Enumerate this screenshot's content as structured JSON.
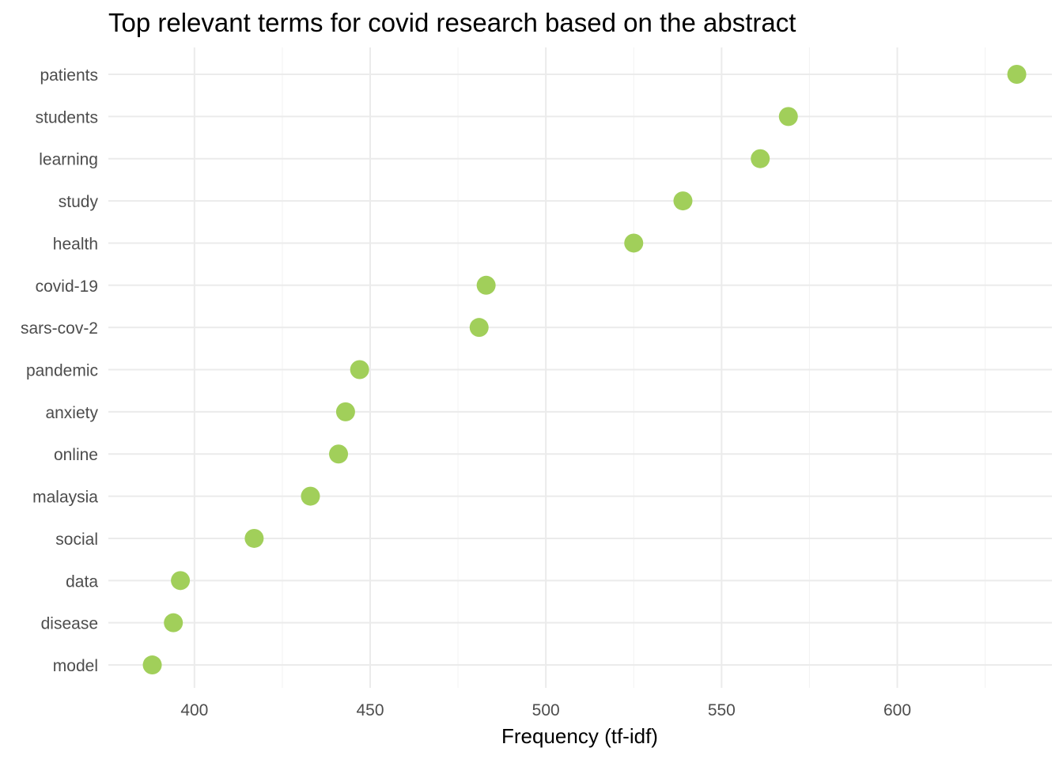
{
  "chart_data": {
    "type": "scatter",
    "title": "Top relevant terms for covid research based on the abstract",
    "xlabel": "Frequency (tf-idf)",
    "ylabel": "",
    "xlim": [
      375.5,
      644
    ],
    "xticks": [
      400,
      450,
      500,
      550,
      600
    ],
    "grid": true,
    "legend": "none",
    "point_color": "#a1cf5a",
    "categories": [
      "patients",
      "students",
      "learning",
      "study",
      "health",
      "covid-19",
      "sars-cov-2",
      "pandemic",
      "anxiety",
      "online",
      "malaysia",
      "social",
      "data",
      "disease",
      "model"
    ],
    "values": [
      634,
      569,
      561,
      539,
      525,
      483,
      481,
      447,
      443,
      441,
      433,
      417,
      396,
      394,
      388
    ]
  }
}
